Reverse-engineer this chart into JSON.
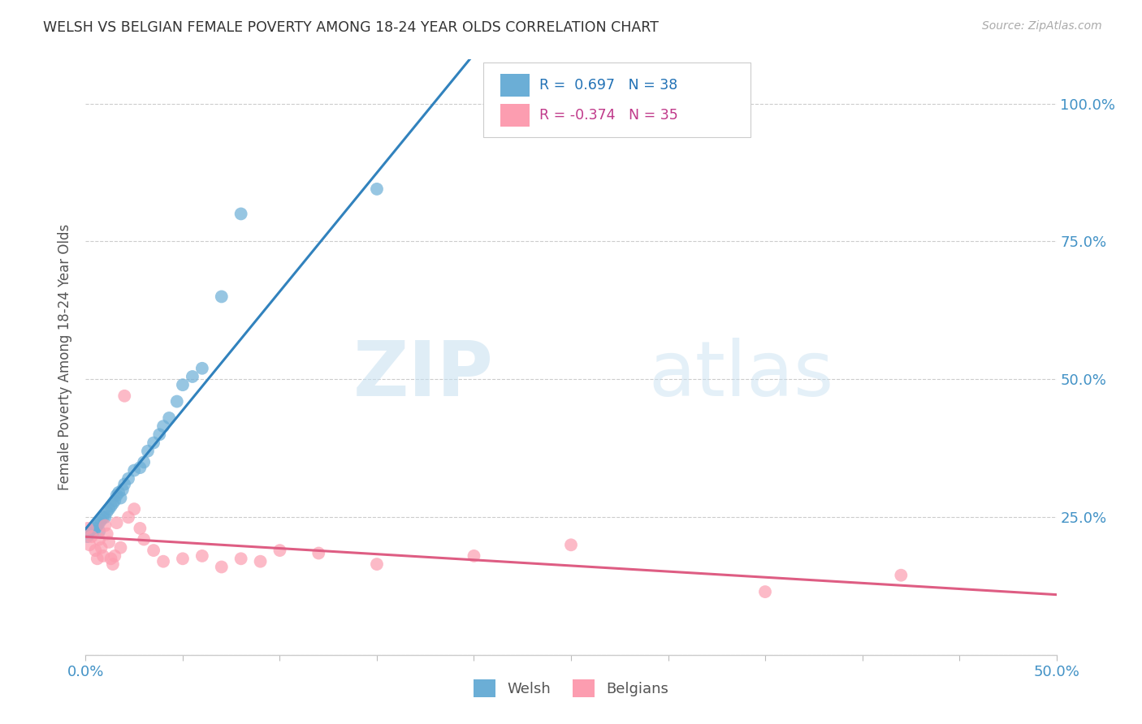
{
  "title": "WELSH VS BELGIAN FEMALE POVERTY AMONG 18-24 YEAR OLDS CORRELATION CHART",
  "source": "Source: ZipAtlas.com",
  "ylabel": "Female Poverty Among 18-24 Year Olds",
  "xlim": [
    0.0,
    0.5
  ],
  "ylim": [
    0.0,
    1.05
  ],
  "welsh_color": "#6baed6",
  "belgian_color": "#fc9db0",
  "welsh_line_color": "#3182bd",
  "belgian_line_color": "#de5d83",
  "welsh_R": 0.697,
  "welsh_N": 38,
  "belgian_R": -0.374,
  "belgian_N": 35,
  "background_color": "#ffffff",
  "watermark_zip": "ZIP",
  "watermark_atlas": "atlas",
  "welsh_x": [
    0.001,
    0.002,
    0.003,
    0.004,
    0.005,
    0.006,
    0.007,
    0.007,
    0.008,
    0.009,
    0.01,
    0.011,
    0.012,
    0.013,
    0.014,
    0.015,
    0.016,
    0.017,
    0.018,
    0.019,
    0.02,
    0.022,
    0.025,
    0.028,
    0.03,
    0.032,
    0.035,
    0.038,
    0.04,
    0.043,
    0.047,
    0.05,
    0.055,
    0.06,
    0.07,
    0.08,
    0.15,
    0.21
  ],
  "welsh_y": [
    0.215,
    0.22,
    0.225,
    0.225,
    0.23,
    0.235,
    0.225,
    0.24,
    0.245,
    0.25,
    0.25,
    0.26,
    0.265,
    0.27,
    0.275,
    0.28,
    0.29,
    0.295,
    0.285,
    0.3,
    0.31,
    0.32,
    0.335,
    0.34,
    0.35,
    0.37,
    0.385,
    0.4,
    0.415,
    0.43,
    0.46,
    0.49,
    0.505,
    0.52,
    0.65,
    0.8,
    0.845,
    1.0
  ],
  "belgian_x": [
    0.001,
    0.002,
    0.003,
    0.005,
    0.006,
    0.007,
    0.008,
    0.009,
    0.01,
    0.011,
    0.012,
    0.013,
    0.014,
    0.015,
    0.016,
    0.018,
    0.02,
    0.022,
    0.025,
    0.028,
    0.03,
    0.035,
    0.04,
    0.05,
    0.06,
    0.07,
    0.08,
    0.09,
    0.1,
    0.12,
    0.15,
    0.2,
    0.25,
    0.35,
    0.42
  ],
  "belgian_y": [
    0.23,
    0.2,
    0.215,
    0.19,
    0.175,
    0.21,
    0.195,
    0.18,
    0.235,
    0.22,
    0.205,
    0.175,
    0.165,
    0.18,
    0.24,
    0.195,
    0.47,
    0.25,
    0.265,
    0.23,
    0.21,
    0.19,
    0.17,
    0.175,
    0.18,
    0.16,
    0.175,
    0.17,
    0.19,
    0.185,
    0.165,
    0.18,
    0.2,
    0.115,
    0.145
  ]
}
